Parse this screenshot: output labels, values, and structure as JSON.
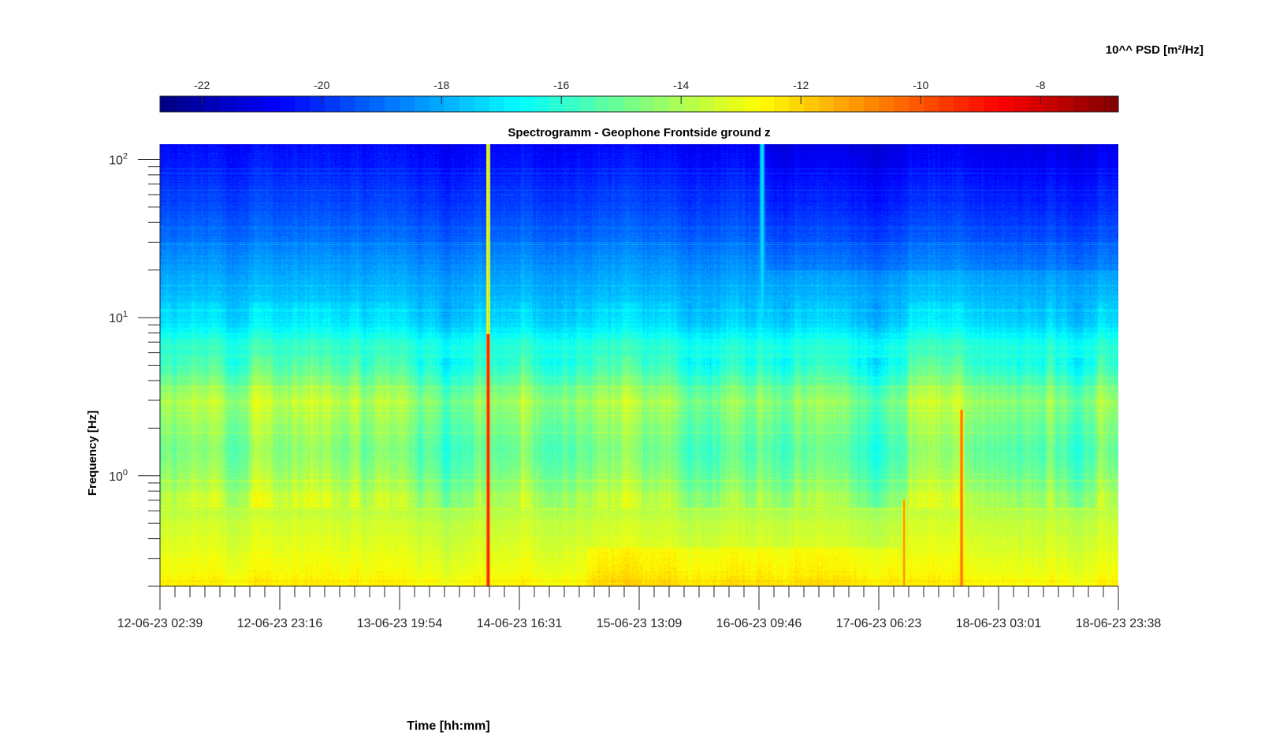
{
  "chart_data": {
    "type": "heatmap",
    "title": "Spectrogramm - Geophone Frontside ground z",
    "xlabel": "Time [hh:mm]",
    "ylabel": "Frequency [Hz]",
    "colorbar_label": "10^^ PSD [m²/Hz]",
    "colormap": "jet",
    "colorbar_position": "top",
    "clim": [
      -22.7,
      -6.7
    ],
    "colorbar_ticks": [
      -22,
      -20,
      -18,
      -16,
      -14,
      -12,
      -10,
      -8
    ],
    "colorbar_tick_labels": [
      "-22",
      "-20",
      "-18",
      "-16",
      "-14",
      "-12",
      "-10",
      "-8"
    ],
    "x_tick_labels": [
      "12-06-23 02:39",
      "12-06-23 23:16",
      "13-06-23 19:54",
      "14-06-23 16:31",
      "15-06-23 13:09",
      "16-06-23 09:46",
      "17-06-23 06:23",
      "18-06-23 03:01",
      "18-06-23 23:38"
    ],
    "x_range": [
      "12-06-23 02:39",
      "18-06-23 23:38"
    ],
    "y_scale": "log",
    "y_range_hz": [
      0.2,
      125
    ],
    "y_ticks_hz": [
      1,
      10,
      100
    ],
    "y_tick_labels": [
      {
        "base": "10",
        "exp": "0"
      },
      {
        "base": "10",
        "exp": "1"
      },
      {
        "base": "10",
        "exp": "2"
      }
    ],
    "psd_profile": [
      {
        "freq_hz": 0.2,
        "log10_psd": -12.6
      },
      {
        "freq_hz": 0.3,
        "log10_psd": -13.1
      },
      {
        "freq_hz": 0.5,
        "log10_psd": -13.6
      },
      {
        "freq_hz": 0.7,
        "log10_psd": -14.0
      },
      {
        "freq_hz": 1.0,
        "log10_psd": -14.7
      },
      {
        "freq_hz": 1.5,
        "log10_psd": -15.1
      },
      {
        "freq_hz": 3.0,
        "log10_psd": -14.3
      },
      {
        "freq_hz": 5.0,
        "log10_psd": -16.0
      },
      {
        "freq_hz": 7.0,
        "log10_psd": -16.2
      },
      {
        "freq_hz": 9.0,
        "log10_psd": -17.2
      },
      {
        "freq_hz": 15.0,
        "log10_psd": -17.9
      },
      {
        "freq_hz": 25.0,
        "log10_psd": -18.6
      },
      {
        "freq_hz": 50.0,
        "log10_psd": -19.7
      },
      {
        "freq_hz": 125.0,
        "log10_psd": -20.7
      }
    ],
    "events": [
      {
        "time_fraction": 0.342,
        "type": "broadband",
        "peak_log10_psd": -8.5
      },
      {
        "time_fraction": 0.628,
        "type": "high-frequency",
        "peak_log10_psd": -17.0
      },
      {
        "time_fraction": 0.776,
        "type": "low-frequency",
        "peak_log10_psd": -10.5
      },
      {
        "time_fraction": 0.836,
        "type": "low-frequency",
        "peak_log10_psd": -9.8
      }
    ]
  }
}
